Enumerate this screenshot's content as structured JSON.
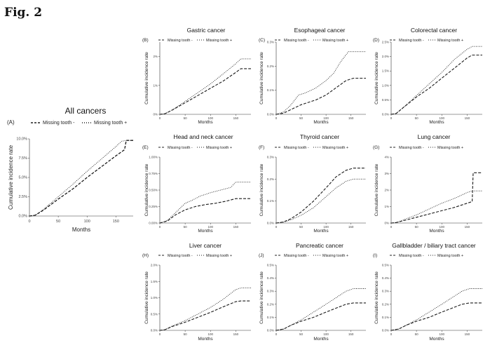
{
  "figure": {
    "label": "Fig. 2"
  },
  "legend": {
    "minus": "Missing tooth -",
    "plus": "Missing tooth +"
  },
  "chart_data": [
    {
      "id": "A",
      "panel_label": "(A)",
      "title": "All cancers",
      "type": "line",
      "xlabel": "Months",
      "ylabel": "Cumulative incidence rate",
      "xlim": [
        0,
        180
      ],
      "xticks": [
        0,
        50,
        100,
        150
      ],
      "xtick_labels": [
        "0",
        "50",
        "100",
        "150"
      ],
      "ylim": [
        0,
        0.1
      ],
      "yticks": [
        0,
        0.025,
        0.05,
        0.075,
        0.1
      ],
      "ytick_labels": [
        "0.0%",
        "2.5%",
        "5.0%",
        "7.5%",
        "10.0%"
      ],
      "series": [
        {
          "name": "Missing tooth -",
          "style": "dashed",
          "x": [
            0,
            10,
            25,
            50,
            75,
            100,
            125,
            150,
            165,
            168,
            180
          ],
          "y": [
            0,
            0.001,
            0.008,
            0.022,
            0.035,
            0.05,
            0.064,
            0.078,
            0.086,
            0.098,
            0.098
          ]
        },
        {
          "name": "Missing tooth +",
          "style": "dotted",
          "x": [
            0,
            10,
            25,
            50,
            75,
            100,
            125,
            150,
            160,
            170,
            180
          ],
          "y": [
            0,
            0.001,
            0.009,
            0.025,
            0.041,
            0.058,
            0.074,
            0.09,
            0.097,
            0.098,
            0.098
          ]
        }
      ]
    },
    {
      "id": "B",
      "panel_label": "(B)",
      "title": "Gastric cancer",
      "type": "line",
      "xlabel": "Months",
      "ylabel": "Cumulative incidence rate",
      "xlim": [
        0,
        180
      ],
      "xticks": [
        0,
        50,
        100,
        150
      ],
      "xtick_labels": [
        "0",
        "50",
        "100",
        "150"
      ],
      "ylim": [
        0,
        0.025
      ],
      "yticks": [
        0,
        0.01,
        0.02
      ],
      "ytick_labels": [
        "0%",
        "1%",
        "2%"
      ],
      "series": [
        {
          "name": "Missing tooth -",
          "style": "dashed",
          "x": [
            0,
            10,
            25,
            50,
            75,
            100,
            125,
            150,
            160,
            180
          ],
          "y": [
            0,
            0.0002,
            0.0015,
            0.004,
            0.0065,
            0.009,
            0.0115,
            0.0145,
            0.0158,
            0.0158
          ]
        },
        {
          "name": "Missing tooth +",
          "style": "dotted",
          "x": [
            0,
            10,
            25,
            50,
            75,
            100,
            125,
            150,
            160,
            180
          ],
          "y": [
            0,
            0.0002,
            0.0016,
            0.0045,
            0.0075,
            0.0105,
            0.014,
            0.0175,
            0.0192,
            0.0192
          ]
        }
      ]
    },
    {
      "id": "C",
      "panel_label": "(C)",
      "title": "Esophageal cancer",
      "type": "line",
      "xlabel": "Months",
      "ylabel": "Cumulative incidence rate",
      "xlim": [
        0,
        180
      ],
      "xticks": [
        0,
        50,
        100,
        150
      ],
      "xtick_labels": [
        "0",
        "50",
        "100",
        "150"
      ],
      "ylim": [
        0,
        0.003
      ],
      "yticks": [
        0,
        0.001,
        0.002,
        0.003
      ],
      "ytick_labels": [
        "0.0%",
        "0.1%",
        "0.2%",
        "0.3%"
      ],
      "series": [
        {
          "name": "Missing tooth -",
          "style": "dashed",
          "x": [
            0,
            15,
            30,
            50,
            80,
            100,
            120,
            140,
            155,
            180
          ],
          "y": [
            0,
            5e-05,
            0.0002,
            0.0004,
            0.0006,
            0.0008,
            0.0011,
            0.0014,
            0.0015,
            0.0015
          ]
        },
        {
          "name": "Missing tooth +",
          "style": "dotted",
          "x": [
            0,
            15,
            30,
            45,
            60,
            80,
            100,
            115,
            130,
            145,
            180
          ],
          "y": [
            0,
            0.0001,
            0.0004,
            0.0008,
            0.0009,
            0.0011,
            0.0014,
            0.0017,
            0.0022,
            0.0026,
            0.0026
          ]
        }
      ]
    },
    {
      "id": "D",
      "panel_label": "(D)",
      "title": "Colorectal cancer",
      "type": "line",
      "xlabel": "Months",
      "ylabel": "Cumulative incidence rate",
      "xlim": [
        0,
        180
      ],
      "xticks": [
        0,
        50,
        100,
        150
      ],
      "xtick_labels": [
        "0",
        "50",
        "100",
        "150"
      ],
      "ylim": [
        0,
        0.025
      ],
      "yticks": [
        0,
        0.005,
        0.01,
        0.015,
        0.02,
        0.025
      ],
      "ytick_labels": [
        "0.0%",
        "0.5%",
        "1.0%",
        "1.5%",
        "2.0%",
        "2.5%"
      ],
      "series": [
        {
          "name": "Missing tooth -",
          "style": "dashed",
          "x": [
            0,
            10,
            25,
            50,
            75,
            100,
            125,
            150,
            160,
            180
          ],
          "y": [
            0,
            0.0003,
            0.0025,
            0.006,
            0.009,
            0.0125,
            0.016,
            0.0195,
            0.0205,
            0.0205
          ]
        },
        {
          "name": "Missing tooth +",
          "style": "dotted",
          "x": [
            0,
            10,
            25,
            50,
            75,
            100,
            125,
            150,
            160,
            180
          ],
          "y": [
            0,
            0.0003,
            0.0025,
            0.0065,
            0.0105,
            0.0145,
            0.019,
            0.0225,
            0.0235,
            0.0235
          ]
        }
      ]
    },
    {
      "id": "E",
      "panel_label": "(E)",
      "title": "Head and neck cancer",
      "type": "line",
      "xlabel": "Months",
      "ylabel": "Cumulative incidence rate",
      "xlim": [
        0,
        180
      ],
      "xticks": [
        0,
        50,
        100,
        150
      ],
      "xtick_labels": [
        "0",
        "50",
        "100",
        "150"
      ],
      "ylim": [
        0,
        0.01
      ],
      "yticks": [
        0,
        0.0025,
        0.005,
        0.0075,
        0.01
      ],
      "ytick_labels": [
        "0.00%",
        "0.25%",
        "0.50%",
        "0.75%",
        "1.00%"
      ],
      "series": [
        {
          "name": "Missing tooth -",
          "style": "dashed",
          "x": [
            0,
            15,
            30,
            50,
            70,
            90,
            110,
            130,
            150,
            180
          ],
          "y": [
            0,
            0.0003,
            0.0012,
            0.002,
            0.0025,
            0.0028,
            0.003,
            0.0033,
            0.0037,
            0.0037
          ]
        },
        {
          "name": "Missing tooth +",
          "style": "dotted",
          "x": [
            0,
            15,
            30,
            50,
            65,
            80,
            100,
            120,
            140,
            150,
            180
          ],
          "y": [
            0,
            0.0004,
            0.0015,
            0.003,
            0.0035,
            0.0041,
            0.0046,
            0.005,
            0.0054,
            0.0062,
            0.0062
          ]
        }
      ]
    },
    {
      "id": "F",
      "panel_label": "(F)",
      "title": "Thyroid cancer",
      "type": "line",
      "xlabel": "Months",
      "ylabel": "Cumulative incidence rate",
      "xlim": [
        0,
        180
      ],
      "xticks": [
        0,
        50,
        100,
        150
      ],
      "xtick_labels": [
        "0",
        "50",
        "100",
        "150"
      ],
      "ylim": [
        0,
        0.003
      ],
      "yticks": [
        0,
        0.001,
        0.002,
        0.003
      ],
      "ytick_labels": [
        "0.0%",
        "0.1%",
        "0.2%",
        "0.3%"
      ],
      "series": [
        {
          "name": "Missing tooth -",
          "style": "dashed",
          "x": [
            0,
            15,
            30,
            50,
            75,
            100,
            120,
            140,
            155,
            180
          ],
          "y": [
            0,
            5e-05,
            0.0002,
            0.0005,
            0.001,
            0.0016,
            0.0021,
            0.0024,
            0.0025,
            0.0025
          ]
        },
        {
          "name": "Missing tooth +",
          "style": "dotted",
          "x": [
            0,
            15,
            30,
            50,
            75,
            100,
            120,
            140,
            155,
            180
          ],
          "y": [
            0,
            4e-05,
            0.00015,
            0.00035,
            0.0007,
            0.0012,
            0.0016,
            0.0019,
            0.002,
            0.002
          ]
        }
      ]
    },
    {
      "id": "G",
      "panel_label": "(G)",
      "title": "Lung cancer",
      "type": "line",
      "xlabel": "Months",
      "ylabel": "Cumulative incidence rate",
      "xlim": [
        0,
        180
      ],
      "xticks": [
        0,
        50,
        100,
        150
      ],
      "xtick_labels": [
        "0",
        "50",
        "100",
        "150"
      ],
      "ylim": [
        0,
        0.04
      ],
      "yticks": [
        0,
        0.01,
        0.02,
        0.03,
        0.04
      ],
      "ytick_labels": [
        "0%",
        "1%",
        "2%",
        "3%",
        "4%"
      ],
      "series": [
        {
          "name": "Missing tooth -",
          "style": "dashed",
          "x": [
            0,
            10,
            25,
            50,
            75,
            100,
            125,
            150,
            160,
            162,
            180
          ],
          "y": [
            0,
            0.0003,
            0.0015,
            0.0035,
            0.0055,
            0.0075,
            0.0095,
            0.012,
            0.013,
            0.0305,
            0.0305
          ]
        },
        {
          "name": "Missing tooth +",
          "style": "dotted",
          "x": [
            0,
            10,
            25,
            50,
            75,
            100,
            125,
            150,
            160,
            180
          ],
          "y": [
            0,
            0.0003,
            0.002,
            0.005,
            0.0085,
            0.012,
            0.015,
            0.0185,
            0.0195,
            0.0195
          ]
        }
      ]
    },
    {
      "id": "H",
      "panel_label": "(H)",
      "title": "Liver cancer",
      "type": "line",
      "xlabel": "Months",
      "ylabel": "Cumulative incidence rate",
      "xlim": [
        0,
        180
      ],
      "xticks": [
        0,
        50,
        100,
        150
      ],
      "xtick_labels": [
        "0",
        "50",
        "100",
        "150"
      ],
      "ylim": [
        0,
        0.02
      ],
      "yticks": [
        0,
        0.005,
        0.01,
        0.015,
        0.02
      ],
      "ytick_labels": [
        "0.0%",
        "0.5%",
        "1.0%",
        "1.5%",
        "2.0%"
      ],
      "series": [
        {
          "name": "Missing tooth -",
          "style": "dashed",
          "x": [
            0,
            10,
            25,
            50,
            75,
            100,
            125,
            150,
            160,
            180
          ],
          "y": [
            0,
            0.0002,
            0.0012,
            0.0025,
            0.004,
            0.0055,
            0.0072,
            0.0088,
            0.009,
            0.009
          ]
        },
        {
          "name": "Missing tooth +",
          "style": "dotted",
          "x": [
            0,
            10,
            25,
            50,
            75,
            100,
            125,
            150,
            160,
            180
          ],
          "y": [
            0,
            0.0002,
            0.0014,
            0.003,
            0.005,
            0.007,
            0.0095,
            0.0125,
            0.013,
            0.013
          ]
        }
      ]
    },
    {
      "id": "J",
      "panel_label": "(J)",
      "title": "Pancreatic cancer",
      "type": "line",
      "xlabel": "Months",
      "ylabel": "Cumulative incidence rate",
      "xlim": [
        0,
        180
      ],
      "xticks": [
        0,
        50,
        100,
        150
      ],
      "xtick_labels": [
        "0",
        "50",
        "100",
        "150"
      ],
      "ylim": [
        0,
        0.005
      ],
      "yticks": [
        0,
        0.001,
        0.002,
        0.003,
        0.004,
        0.005
      ],
      "ytick_labels": [
        "0.0%",
        "0.1%",
        "0.2%",
        "0.3%",
        "0.4%",
        "0.5%"
      ],
      "series": [
        {
          "name": "Missing tooth -",
          "style": "dashed",
          "x": [
            0,
            15,
            30,
            50,
            75,
            100,
            120,
            140,
            155,
            180
          ],
          "y": [
            0,
            0.0001,
            0.0004,
            0.0007,
            0.001,
            0.0014,
            0.0017,
            0.002,
            0.0021,
            0.0021
          ]
        },
        {
          "name": "Missing tooth +",
          "style": "dotted",
          "x": [
            0,
            15,
            30,
            50,
            75,
            100,
            120,
            140,
            155,
            180
          ],
          "y": [
            0,
            0.0001,
            0.0004,
            0.0008,
            0.0014,
            0.002,
            0.0025,
            0.003,
            0.0032,
            0.0032
          ]
        }
      ]
    },
    {
      "id": "I",
      "panel_label": "(I)",
      "title": "Gallbladder / biliary tract cancer",
      "type": "line",
      "xlabel": "Months",
      "ylabel": "Cumulative incidence rate",
      "xlim": [
        0,
        180
      ],
      "xticks": [
        0,
        50,
        100,
        150
      ],
      "xtick_labels": [
        "0",
        "50",
        "100",
        "150"
      ],
      "ylim": [
        0,
        0.005
      ],
      "yticks": [
        0,
        0.001,
        0.002,
        0.003,
        0.004,
        0.005
      ],
      "ytick_labels": [
        "0.0%",
        "0.1%",
        "0.2%",
        "0.3%",
        "0.4%",
        "0.5%"
      ],
      "series": [
        {
          "name": "Missing tooth -",
          "style": "dashed",
          "x": [
            0,
            15,
            30,
            50,
            75,
            100,
            120,
            140,
            155,
            180
          ],
          "y": [
            0,
            0.0001,
            0.0004,
            0.0007,
            0.001,
            0.0014,
            0.0017,
            0.002,
            0.0021,
            0.0021
          ]
        },
        {
          "name": "Missing tooth +",
          "style": "dotted",
          "x": [
            0,
            15,
            30,
            50,
            75,
            100,
            120,
            140,
            155,
            180
          ],
          "y": [
            0,
            0.0001,
            0.0004,
            0.0008,
            0.0014,
            0.002,
            0.0025,
            0.003,
            0.0032,
            0.0032
          ]
        }
      ]
    }
  ]
}
